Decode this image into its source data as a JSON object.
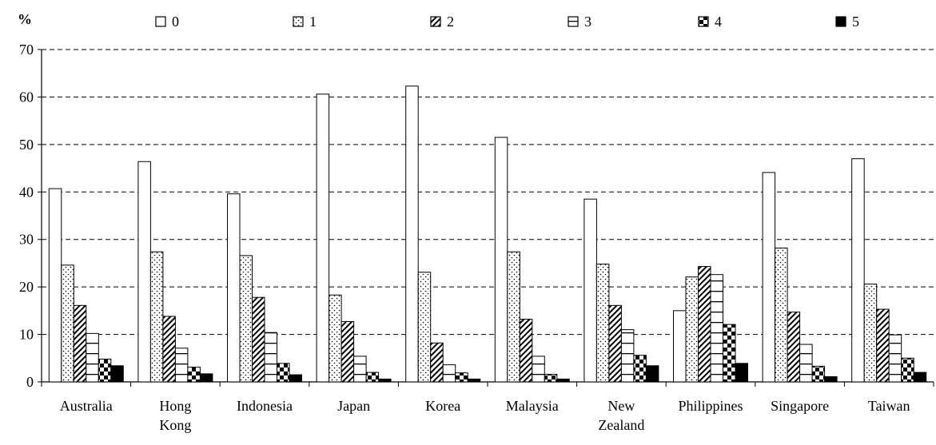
{
  "chart_data": {
    "type": "bar",
    "ylabel": "%",
    "ylim": [
      0,
      70
    ],
    "yticks": [
      0,
      10,
      20,
      30,
      40,
      50,
      60,
      70
    ],
    "grid": "horizontal dashed",
    "legend_position": "top",
    "categories": [
      [
        "Australia"
      ],
      [
        "Hong",
        "Kong"
      ],
      [
        "Indonesia"
      ],
      [
        "Japan"
      ],
      [
        "Korea"
      ],
      [
        "Malaysia"
      ],
      [
        "New",
        "Zealand"
      ],
      [
        "Philippines"
      ],
      [
        "Singapore"
      ],
      [
        "Taiwan"
      ]
    ],
    "series": [
      {
        "name": "0",
        "pattern": "blank",
        "values": [
          40.7,
          46.4,
          39.6,
          60.6,
          62.3,
          51.5,
          38.5,
          15.0,
          44.1,
          47.0
        ]
      },
      {
        "name": "1",
        "pattern": "dots",
        "values": [
          24.6,
          27.4,
          26.6,
          18.3,
          23.1,
          27.4,
          24.8,
          22.1,
          28.2,
          20.6
        ]
      },
      {
        "name": "2",
        "pattern": "diagonal",
        "values": [
          16.1,
          13.8,
          17.8,
          12.7,
          8.2,
          13.2,
          16.1,
          24.3,
          14.7,
          15.3
        ]
      },
      {
        "name": "3",
        "pattern": "hlines",
        "values": [
          10.2,
          7.1,
          10.4,
          5.4,
          3.6,
          5.4,
          11.0,
          22.6,
          7.9,
          9.9
        ]
      },
      {
        "name": "4",
        "pattern": "checker",
        "values": [
          4.8,
          3.1,
          3.9,
          2.0,
          1.9,
          1.6,
          5.6,
          12.1,
          3.3,
          5.0
        ]
      },
      {
        "name": "5",
        "pattern": "solid",
        "values": [
          3.4,
          1.7,
          1.5,
          0.6,
          0.6,
          0.6,
          3.4,
          3.9,
          1.1,
          2.0
        ]
      }
    ]
  }
}
